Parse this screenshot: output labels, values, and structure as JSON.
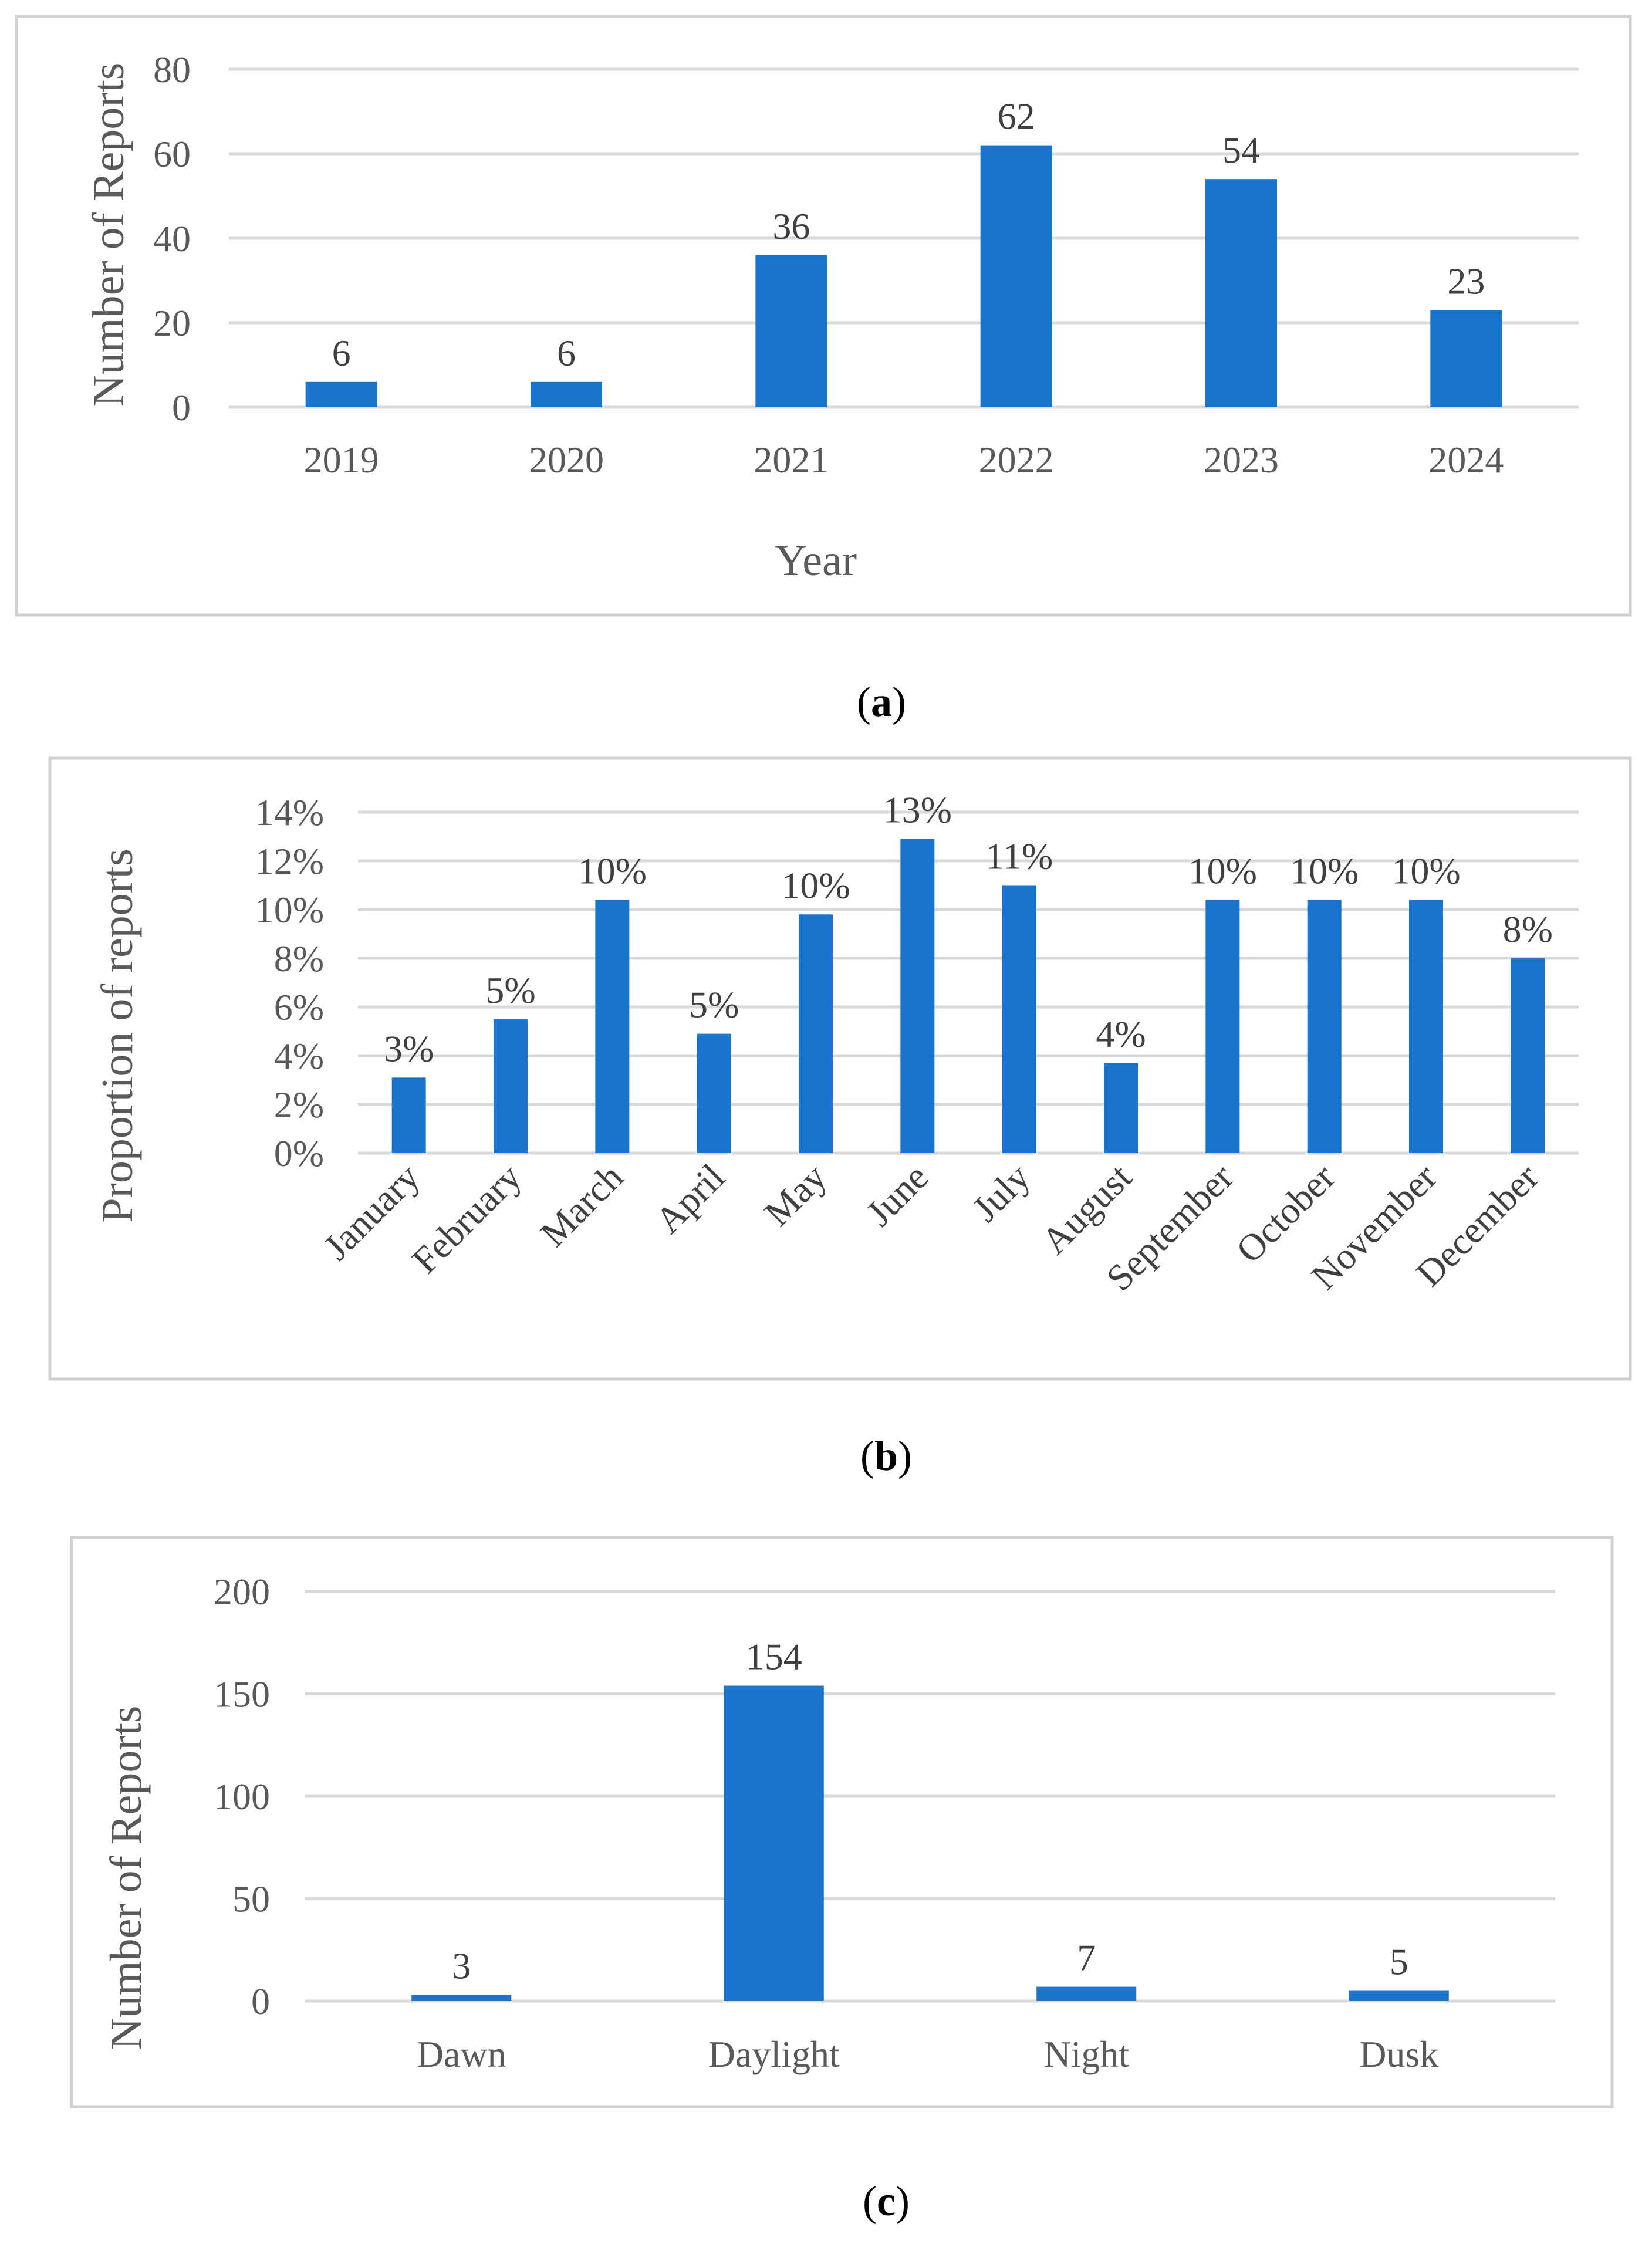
{
  "chart_data": [
    {
      "type": "bar",
      "caption": "a",
      "categories": [
        "2019",
        "2020",
        "2021",
        "2022",
        "2023",
        "2024"
      ],
      "values": [
        6,
        6,
        36,
        62,
        54,
        23
      ],
      "data_labels": [
        "6",
        "6",
        "36",
        "62",
        "54",
        "23"
      ],
      "yticks": [
        "0",
        "20",
        "40",
        "60",
        "80"
      ],
      "ylim": [
        0,
        80
      ],
      "xlabel": "Year",
      "ylabel": "Number of Reports",
      "grid": true,
      "color": "#1874cd"
    },
    {
      "type": "bar",
      "caption": "b",
      "categories": [
        "January",
        "February",
        "March",
        "April",
        "May",
        "June",
        "July",
        "August",
        "September",
        "October",
        "November",
        "December"
      ],
      "values": [
        3.1,
        5.5,
        10.4,
        4.9,
        9.8,
        12.9,
        11.0,
        3.7,
        10.4,
        10.4,
        10.4,
        8.0
      ],
      "data_labels": [
        "3%",
        "5%",
        "10%",
        "5%",
        "10%",
        "13%",
        "11%",
        "4%",
        "10%",
        "10%",
        "10%",
        "8%"
      ],
      "yticks": [
        "0%",
        "2%",
        "4%",
        "6%",
        "8%",
        "10%",
        "12%",
        "14%"
      ],
      "ylim": [
        0,
        14
      ],
      "xlabel": "",
      "ylabel": "Proportion of reports",
      "grid": true,
      "color": "#1874cd"
    },
    {
      "type": "bar",
      "caption": "c",
      "categories": [
        "Dawn",
        "Daylight",
        "Night",
        "Dusk"
      ],
      "values": [
        3,
        154,
        7,
        5
      ],
      "data_labels": [
        "3",
        "154",
        "7",
        "5"
      ],
      "yticks": [
        "0",
        "50",
        "100",
        "150",
        "200"
      ],
      "ylim": [
        0,
        200
      ],
      "xlabel": "",
      "ylabel": "Number of Reports",
      "grid": true,
      "color": "#1874cd"
    }
  ]
}
